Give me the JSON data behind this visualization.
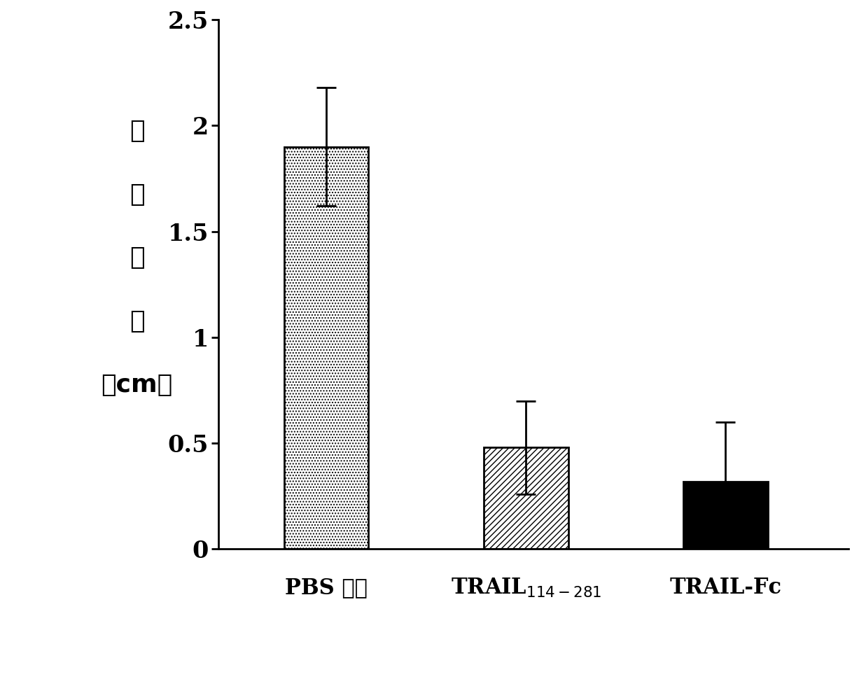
{
  "values": [
    1.9,
    0.48,
    0.32
  ],
  "errors": [
    0.28,
    0.22,
    0.28
  ],
  "ylim": [
    0,
    2.5
  ],
  "yticks": [
    0,
    0.5,
    1.0,
    1.5,
    2.0,
    2.5
  ],
  "ytick_labels": [
    "0",
    "0.5",
    "1",
    "1.5",
    "2",
    "2.5"
  ],
  "bar_width": 0.55,
  "background_color": "#ffffff",
  "bar_edge_color": "#000000",
  "error_color": "#000000",
  "hatch_patterns": [
    "....",
    "////",
    "xxxx"
  ],
  "bar_facecolors": [
    "#ffffff",
    "#ffffff",
    "#000000"
  ],
  "x_positions": [
    1.0,
    2.3,
    3.6
  ],
  "xlim": [
    0.3,
    4.4
  ],
  "figure_width": 12.27,
  "figure_height": 9.9,
  "dpi": 100,
  "ylabel_chars": [
    "肿",
    "瘾",
    "大",
    "小",
    "（cm）"
  ],
  "label1": "PBS 对照",
  "label2_main": "TRAIL",
  "label2_sub": "114-281",
  "label3": "TRAIL-Fc",
  "ytick_fontsize": 24,
  "xlabel_fontsize": 22,
  "ylabel_fontsize": 26
}
